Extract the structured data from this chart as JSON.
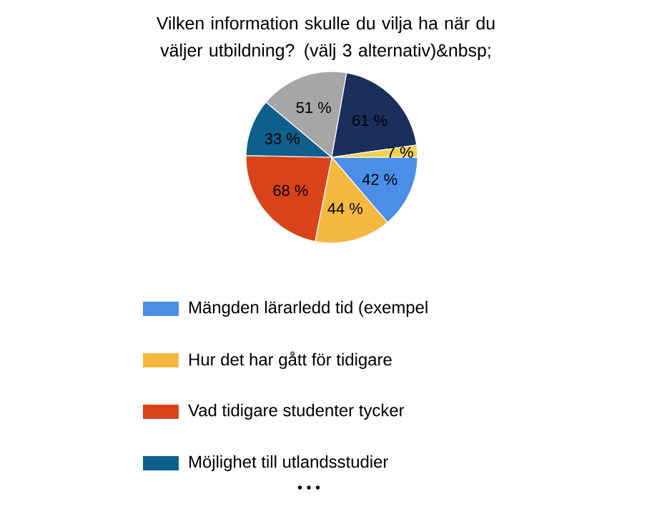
{
  "chart_data": {
    "type": "pie",
    "title": "Vilken information skulle du vilja ha när du väljer utbildning? (välj 3 alternativ)&nbsp;",
    "categories": [
      "Mängden lärarledd tid (exempel",
      "Hur det har gått för tidigare",
      "Vad tidigare studenter tycker",
      "Möjlighet till utlandsstudier",
      null,
      null,
      null
    ],
    "values": [
      42,
      44,
      68,
      33,
      51,
      61,
      7
    ],
    "value_labels": [
      "42 %",
      "44 %",
      "68 %",
      "33 %",
      "51 %",
      "61 %",
      "7 %"
    ],
    "colors": [
      "#4a8ee8",
      "#f5b942",
      "#d9431a",
      "#0e5f8c",
      "#a6a6a6",
      "#1b2f5c",
      "#f0d050"
    ],
    "legend": "bottom",
    "annotations": [
      "• • •"
    ]
  }
}
